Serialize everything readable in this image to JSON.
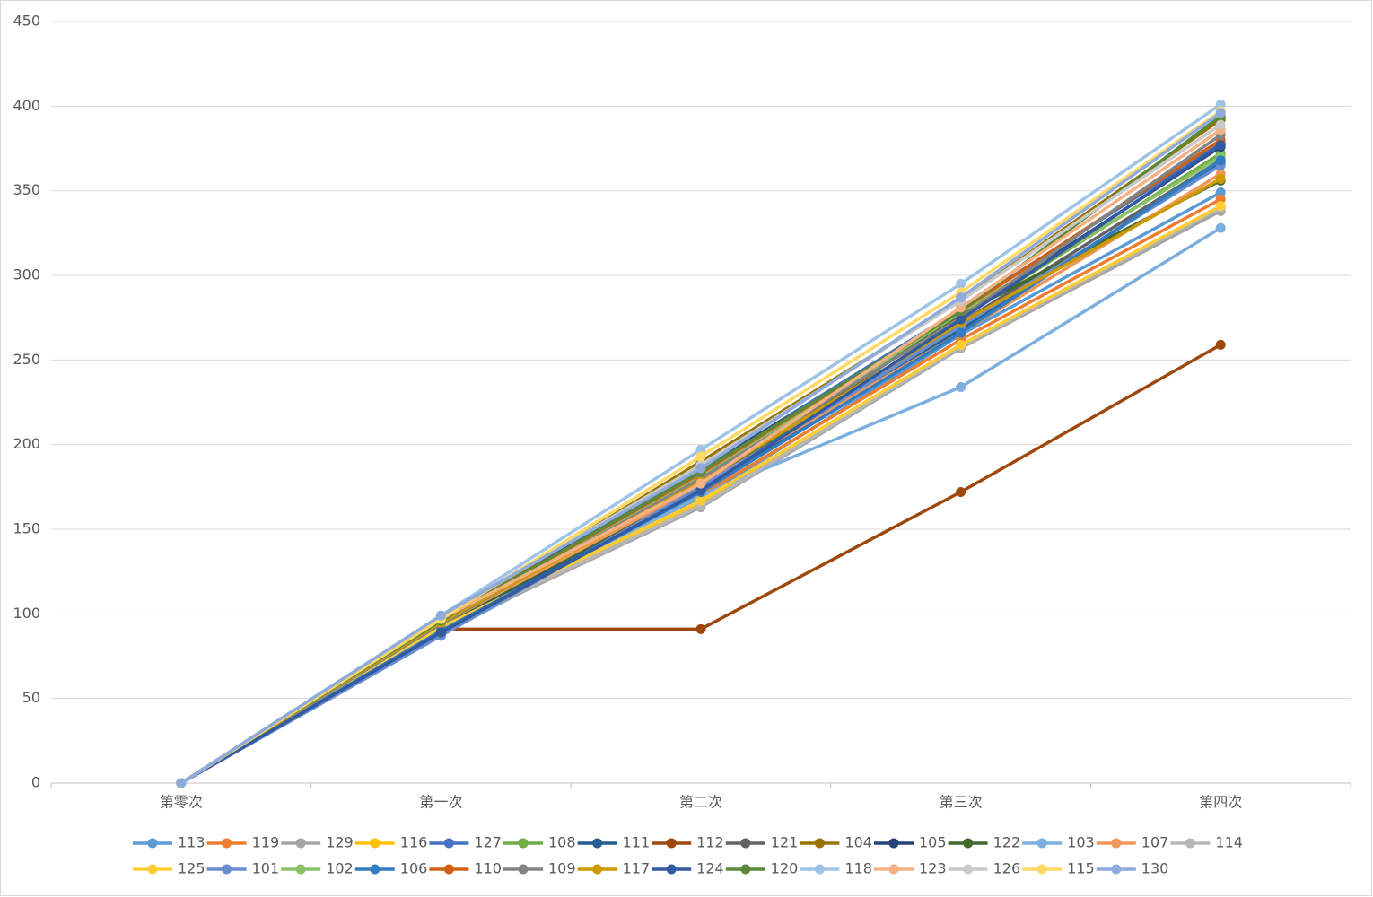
{
  "chart_data": {
    "type": "line",
    "categories": [
      "第零次",
      "第一次",
      "第二次",
      "第三次",
      "第四次"
    ],
    "ylim": [
      0,
      450
    ],
    "yticks": [
      0,
      50,
      100,
      150,
      200,
      250,
      300,
      350,
      400,
      450
    ],
    "grid": true,
    "legend": "bottom",
    "series": [
      {
        "name": "113",
        "color": "#5b9bd5",
        "values": [
          0,
          88,
          168,
          265,
          349
        ]
      },
      {
        "name": "119",
        "color": "#ed7d31",
        "values": [
          0,
          92,
          170,
          262,
          345
        ]
      },
      {
        "name": "129",
        "color": "#a5a5a5",
        "values": [
          0,
          90,
          163,
          257,
          338
        ]
      },
      {
        "name": "116",
        "color": "#ffc000",
        "values": [
          0,
          93,
          166,
          258,
          340
        ]
      },
      {
        "name": "127",
        "color": "#4472c4",
        "values": [
          0,
          97,
          185,
          280,
          378
        ]
      },
      {
        "name": "108",
        "color": "#70ad47",
        "values": [
          0,
          95,
          180,
          275,
          372
        ]
      },
      {
        "name": "111",
        "color": "#255e91",
        "values": [
          0,
          92,
          174,
          268,
          366
        ]
      },
      {
        "name": "112",
        "color": "#9e480e",
        "values": [
          0,
          91,
          91,
          172,
          259
        ]
      },
      {
        "name": "121",
        "color": "#636363",
        "values": [
          0,
          94,
          178,
          272,
          368
        ]
      },
      {
        "name": "104",
        "color": "#997300",
        "values": [
          0,
          96,
          190,
          285,
          392
        ]
      },
      {
        "name": "105",
        "color": "#264478",
        "values": [
          0,
          95,
          186,
          276,
          376
        ]
      },
      {
        "name": "122",
        "color": "#43682b",
        "values": [
          0,
          93,
          175,
          277,
          356
        ]
      },
      {
        "name": "103",
        "color": "#7cafdd",
        "values": [
          0,
          90,
          170,
          234,
          328
        ]
      },
      {
        "name": "107",
        "color": "#f1975a",
        "values": [
          0,
          94,
          176,
          266,
          360
        ]
      },
      {
        "name": "114",
        "color": "#b7b7b7",
        "values": [
          0,
          91,
          164,
          258,
          340
        ]
      },
      {
        "name": "125",
        "color": "#ffcd33",
        "values": [
          0,
          92,
          167,
          259,
          341
        ]
      },
      {
        "name": "101",
        "color": "#698ed0",
        "values": [
          0,
          87,
          175,
          270,
          365
        ]
      },
      {
        "name": "102",
        "color": "#8cc168",
        "values": [
          0,
          95,
          181,
          278,
          370
        ]
      },
      {
        "name": "106",
        "color": "#327dc2",
        "values": [
          0,
          90,
          172,
          266,
          368
        ]
      },
      {
        "name": "110",
        "color": "#d26012",
        "values": [
          0,
          96,
          183,
          279,
          380
        ]
      },
      {
        "name": "109",
        "color": "#848484",
        "values": [
          0,
          94,
          180,
          275,
          383
        ]
      },
      {
        "name": "117",
        "color": "#cc9a00",
        "values": [
          0,
          95,
          178,
          272,
          357
        ]
      },
      {
        "name": "124",
        "color": "#335aa1",
        "values": [
          0,
          89,
          173,
          274,
          377
        ]
      },
      {
        "name": "120",
        "color": "#5a8a39",
        "values": [
          0,
          96,
          184,
          279,
          394
        ]
      },
      {
        "name": "118",
        "color": "#9dc3e6",
        "values": [
          0,
          99,
          197,
          295,
          401
        ]
      },
      {
        "name": "123",
        "color": "#f4b183",
        "values": [
          0,
          97,
          177,
          281,
          386
        ]
      },
      {
        "name": "126",
        "color": "#c9c9c9",
        "values": [
          0,
          98,
          188,
          285,
          389
        ]
      },
      {
        "name": "115",
        "color": "#ffd966",
        "values": [
          0,
          97,
          193,
          290,
          397
        ]
      },
      {
        "name": "130",
        "color": "#8faadc",
        "values": [
          0,
          99,
          186,
          287,
          396
        ]
      }
    ]
  }
}
